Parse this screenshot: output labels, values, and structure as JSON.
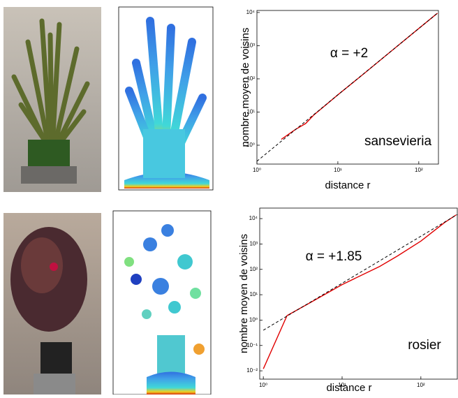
{
  "chart_data": [
    {
      "type": "line",
      "log": true,
      "xlabel": "distance r",
      "ylabel": "nombre moyen de voisins",
      "annotation": "α = +2",
      "label": "sansevieria",
      "xlim": [
        1,
        175
      ],
      "ylim": [
        0.27,
        11500
      ],
      "xticks": [
        {
          "value": 1,
          "label": "10⁰"
        },
        {
          "value": 10,
          "label": "10¹"
        },
        {
          "value": 100,
          "label": "10²"
        }
      ],
      "yticks": [
        {
          "value": 1,
          "label": "10⁰"
        },
        {
          "value": 10,
          "label": "10¹"
        },
        {
          "value": 100,
          "label": "10²"
        },
        {
          "value": 1000,
          "label": "10³"
        },
        {
          "value": 10000,
          "label": "10⁴"
        }
      ],
      "series": [
        {
          "color": "#e00000",
          "dash": false,
          "x": [
            2,
            3,
            4,
            5,
            10,
            20,
            50,
            100,
            170
          ],
          "values": [
            1.5,
            3,
            4.5,
            8,
            33,
            130,
            820,
            3300,
            9500
          ]
        },
        {
          "color": "#000000",
          "dash": true,
          "x": [
            1,
            175
          ],
          "values": [
            0.33,
            10100
          ]
        }
      ]
    },
    {
      "type": "line",
      "log": true,
      "xlabel": "distance r",
      "ylabel": "nombre moyen de voisins",
      "annotation": "α = +1.85",
      "label": "rosier",
      "xlim": [
        0.9,
        290
      ],
      "ylim": [
        0.0047,
        26000
      ],
      "xticks": [
        {
          "value": 1,
          "label": "10⁰"
        },
        {
          "value": 10,
          "label": "10¹"
        },
        {
          "value": 100,
          "label": "10²"
        }
      ],
      "yticks": [
        {
          "value": 0.01,
          "label": "10⁻²"
        },
        {
          "value": 0.1,
          "label": "10⁻¹"
        },
        {
          "value": 1,
          "label": "10⁰"
        },
        {
          "value": 10,
          "label": "10¹"
        },
        {
          "value": 100,
          "label": "10²"
        },
        {
          "value": 1000,
          "label": "10³"
        },
        {
          "value": 10000,
          "label": "10⁴"
        }
      ],
      "series": [
        {
          "color": "#e00000",
          "dash": false,
          "x": [
            1,
            2,
            4,
            10,
            30,
            50,
            100,
            200,
            280
          ],
          "values": [
            0.012,
            1.5,
            5,
            25,
            130,
            330,
            1300,
            7000,
            14000
          ]
        },
        {
          "color": "#000000",
          "dash": true,
          "x": [
            1,
            290
          ],
          "values": [
            0.4,
            14500
          ]
        }
      ]
    }
  ]
}
